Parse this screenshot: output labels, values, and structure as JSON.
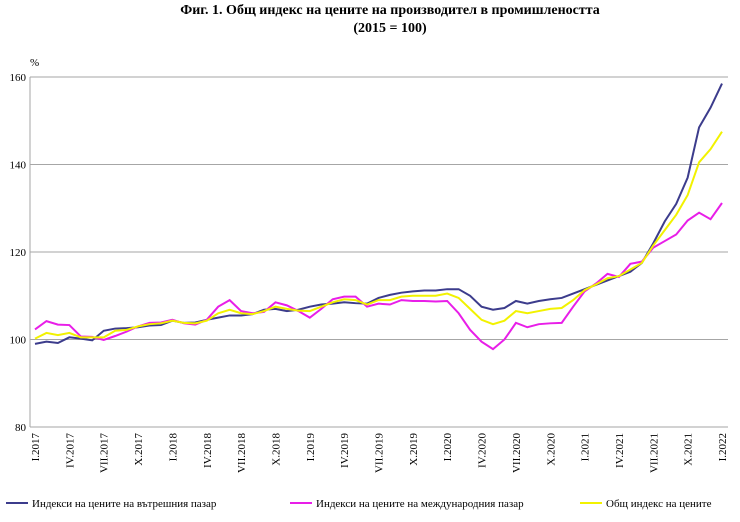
{
  "chart_data": {
    "type": "line",
    "title": "Фиг. 1. Общ индекс на цените на производител в промишлеността",
    "subtitle": "(2015 = 100)",
    "y_label": "%",
    "categories": [
      "I.2017",
      null,
      null,
      "IV.2017",
      null,
      null,
      "VII.2017",
      null,
      null,
      "X.2017",
      null,
      null,
      "I.2018",
      null,
      null,
      "IV.2018",
      null,
      null,
      "VII.2018",
      null,
      null,
      "X.2018",
      null,
      null,
      "I.2019",
      null,
      null,
      "IV.2019",
      null,
      null,
      "VII.2019",
      null,
      null,
      "X.2019",
      null,
      null,
      "I.2020",
      null,
      null,
      "IV.2020",
      null,
      null,
      "VII.2020",
      null,
      null,
      "X.2020",
      null,
      null,
      "I.2021",
      null,
      null,
      "IV.2021",
      null,
      null,
      "VII.2021",
      null,
      null,
      "X.2021",
      null,
      null,
      "I.2022"
    ],
    "series": [
      {
        "name": "Индекси на цените на вътрешния пазар",
        "color": "#3c3c8c",
        "values": [
          99,
          99.5,
          99.2,
          100.5,
          100.2,
          99.8,
          102,
          102.5,
          102.6,
          102.8,
          103.2,
          103.3,
          104.3,
          103.8,
          103.9,
          104.5,
          105,
          105.5,
          105.5,
          105.8,
          106.8,
          107,
          106.5,
          106.8,
          107.5,
          108,
          108.2,
          108.5,
          108.3,
          108.2,
          109.5,
          110.2,
          110.7,
          111,
          111.2,
          111.2,
          111.5,
          111.5,
          110,
          107.5,
          106.8,
          107.2,
          108.8,
          108.2,
          108.8,
          109.2,
          109.5,
          110.5,
          111.5,
          112.5,
          113.5,
          114.5,
          115.5,
          117.5,
          122,
          127,
          131,
          137,
          148.5,
          153,
          158.5
        ]
      },
      {
        "name": "Индекси на цените на международния пазар",
        "color": "#e81ee8",
        "values": [
          102.3,
          104.2,
          103.4,
          103.3,
          100.7,
          100.6,
          99.9,
          100.8,
          101.8,
          103,
          103.8,
          103.9,
          104.5,
          103.7,
          103.4,
          104.5,
          107.5,
          109,
          106.5,
          106,
          106.3,
          108.5,
          107.8,
          106.5,
          105,
          107,
          109.2,
          109.8,
          109.8,
          107.5,
          108.2,
          108,
          109,
          108.8,
          108.8,
          108.7,
          108.8,
          106,
          102.2,
          99.5,
          97.8,
          100,
          103.8,
          102.8,
          103.5,
          103.7,
          103.8,
          107.5,
          111,
          112.8,
          115,
          114.3,
          117.3,
          117.8,
          121,
          122.5,
          124,
          127.2,
          129,
          127.5,
          131.2
        ]
      },
      {
        "name": "Общ индекс на цените",
        "color": "#f2f200",
        "values": [
          100.2,
          101.5,
          101,
          101.5,
          100.5,
          100.5,
          100.5,
          102,
          102.2,
          103,
          103.5,
          103.7,
          104.3,
          103.8,
          103.7,
          104.3,
          106,
          106.8,
          106,
          105.8,
          106.5,
          107.5,
          107,
          106.6,
          106.5,
          107.5,
          108.5,
          109.2,
          109,
          108,
          109,
          109,
          109.8,
          110,
          110,
          110,
          110.5,
          109.5,
          107,
          104.5,
          103.5,
          104.3,
          106.5,
          106,
          106.5,
          107,
          107.2,
          109,
          111.3,
          112.6,
          114,
          114.5,
          116,
          117.5,
          121.5,
          125,
          128.5,
          133,
          140.5,
          143.5,
          147.5
        ]
      }
    ],
    "ylim": [
      80,
      160
    ],
    "yticks": [
      80,
      100,
      120,
      140,
      160
    ],
    "grid": true,
    "legend": "bottom"
  }
}
